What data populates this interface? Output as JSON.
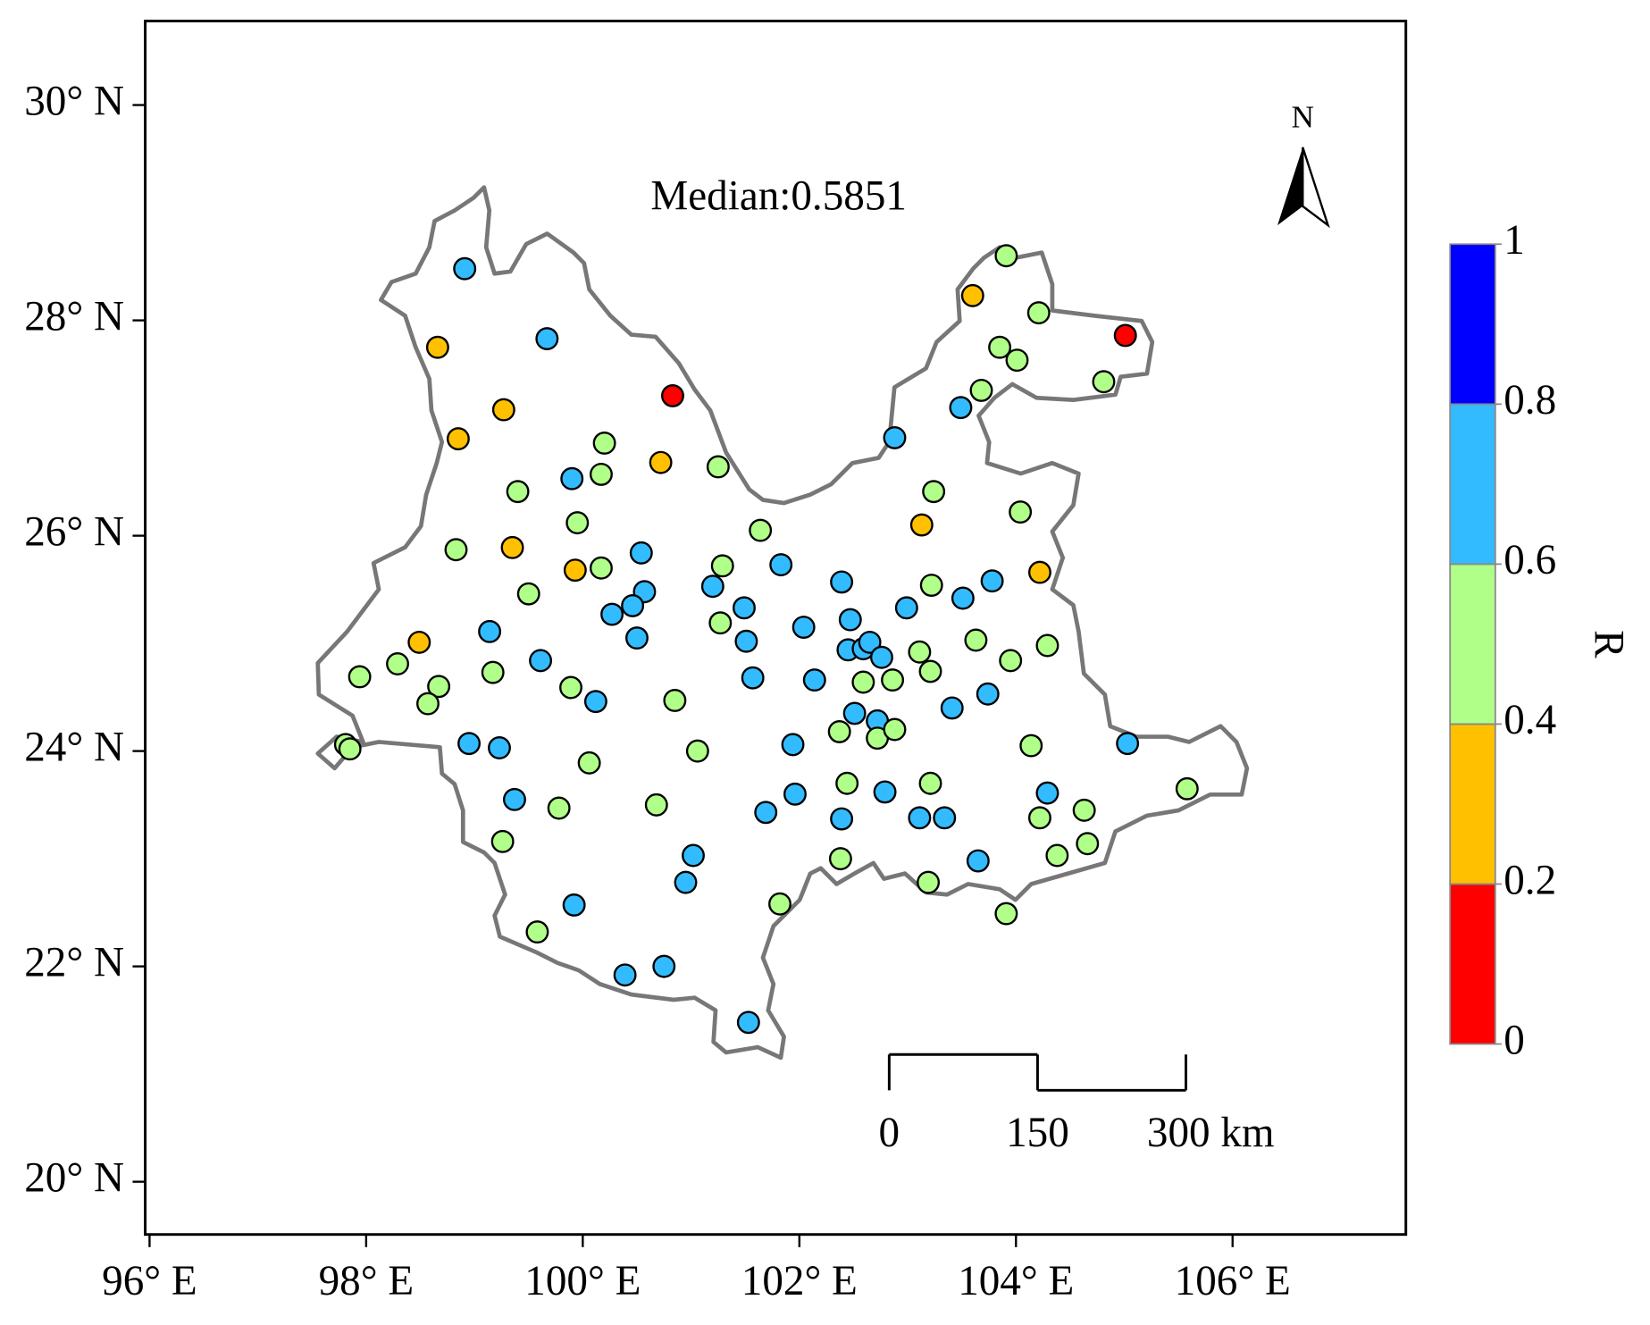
{
  "chart_data": {
    "type": "scatter",
    "annotation": "Median:0.5851",
    "north_label": "N",
    "xlim": [
      95.96,
      107.6
    ],
    "ylim": [
      19.51,
      30.78
    ],
    "xticks": [
      {
        "value": 96,
        "label": "96° E"
      },
      {
        "value": 98,
        "label": "98° E"
      },
      {
        "value": 100,
        "label": "100° E"
      },
      {
        "value": 102,
        "label": "102° E"
      },
      {
        "value": 104,
        "label": "104° E"
      },
      {
        "value": 106,
        "label": "106° E"
      }
    ],
    "yticks": [
      {
        "value": 20,
        "label": "20° N"
      },
      {
        "value": 22,
        "label": "22° N"
      },
      {
        "value": 24,
        "label": "24° N"
      },
      {
        "value": 26,
        "label": "26° N"
      },
      {
        "value": 28,
        "label": "28° N"
      },
      {
        "value": 30,
        "label": "30° N"
      }
    ],
    "x": [
      98.91,
      99.67,
      98.66,
      99.27,
      100.83,
      98.85,
      100.72,
      100.2,
      100.17,
      99.9,
      101.25,
      99.4,
      99.95,
      99.35,
      98.83,
      99.93,
      100.17,
      100.54,
      99.5,
      100.57,
      100.46,
      100.27,
      100.5,
      101.29,
      101.2,
      101.64,
      101.83,
      101.49,
      101.27,
      101.51,
      102.04,
      102.39,
      102.47,
      102.45,
      102.59,
      102.65,
      102.76,
      101.57,
      102.14,
      102.59,
      102.86,
      99.14,
      98.49,
      98.29,
      97.94,
      98.67,
      98.57,
      99.17,
      99.61,
      99.89,
      100.12,
      100.85,
      97.81,
      97.85,
      98.95,
      99.23,
      100.06,
      101.06,
      101.94,
      99.37,
      99.78,
      99.26,
      100.68,
      101.69,
      101.96,
      101.02,
      100.95,
      99.92,
      99.58,
      101.82,
      100.39,
      100.75,
      101.53,
      102.37,
      102.51,
      102.72,
      102.72,
      102.88,
      102.44,
      102.79,
      102.39,
      102.38,
      103.11,
      103.34,
      103.21,
      103.19,
      103.65,
      103.91,
      102.88,
      103.24,
      103.13,
      102.99,
      103.22,
      103.11,
      103.21,
      103.41,
      103.51,
      103.78,
      103.63,
      103.74,
      103.95,
      103.49,
      103.68,
      103.6,
      103.91,
      104.21,
      103.85,
      104.01,
      104.04,
      104.22,
      104.29,
      104.14,
      104.29,
      104.22,
      104.63,
      104.38,
      104.66,
      104.81,
      105.01,
      105.03,
      105.58
    ],
    "y": [
      28.48,
      27.83,
      27.75,
      27.17,
      27.3,
      26.9,
      26.68,
      26.86,
      26.57,
      26.53,
      26.64,
      26.41,
      26.12,
      25.89,
      25.87,
      25.68,
      25.7,
      25.84,
      25.46,
      25.48,
      25.35,
      25.27,
      25.05,
      25.72,
      25.53,
      26.05,
      25.73,
      25.33,
      25.19,
      25.02,
      25.15,
      25.57,
      25.22,
      24.94,
      24.95,
      25.01,
      24.87,
      24.68,
      24.66,
      24.64,
      24.66,
      25.11,
      25.01,
      24.81,
      24.69,
      24.6,
      24.44,
      24.73,
      24.84,
      24.59,
      24.46,
      24.47,
      24.06,
      24.02,
      24.07,
      24.03,
      23.89,
      24.0,
      24.06,
      23.55,
      23.47,
      23.16,
      23.5,
      23.43,
      23.6,
      23.03,
      22.78,
      22.57,
      22.32,
      22.58,
      21.92,
      22.0,
      21.48,
      24.18,
      24.35,
      24.28,
      24.12,
      24.2,
      23.7,
      23.62,
      23.37,
      23.0,
      23.38,
      23.38,
      23.7,
      22.78,
      22.98,
      22.49,
      26.91,
      26.41,
      26.1,
      25.33,
      25.54,
      24.92,
      24.74,
      24.4,
      25.42,
      25.58,
      25.03,
      24.53,
      24.84,
      27.19,
      27.35,
      28.23,
      28.6,
      28.07,
      27.75,
      27.63,
      26.22,
      25.66,
      24.98,
      24.05,
      23.61,
      23.38,
      23.45,
      23.03,
      23.14,
      27.43,
      27.86,
      24.07,
      23.65
    ],
    "values": [
      0.7,
      0.7,
      0.3,
      0.3,
      0.1,
      0.3,
      0.3,
      0.5,
      0.5,
      0.7,
      0.5,
      0.5,
      0.5,
      0.3,
      0.5,
      0.3,
      0.5,
      0.7,
      0.5,
      0.7,
      0.7,
      0.7,
      0.7,
      0.5,
      0.7,
      0.5,
      0.7,
      0.7,
      0.5,
      0.7,
      0.7,
      0.7,
      0.7,
      0.7,
      0.7,
      0.7,
      0.7,
      0.7,
      0.7,
      0.5,
      0.5,
      0.7,
      0.3,
      0.5,
      0.5,
      0.5,
      0.5,
      0.5,
      0.7,
      0.5,
      0.7,
      0.5,
      0.5,
      0.5,
      0.7,
      0.7,
      0.5,
      0.5,
      0.7,
      0.7,
      0.5,
      0.5,
      0.5,
      0.7,
      0.7,
      0.7,
      0.7,
      0.7,
      0.5,
      0.5,
      0.7,
      0.7,
      0.7,
      0.5,
      0.7,
      0.7,
      0.5,
      0.5,
      0.5,
      0.7,
      0.7,
      0.5,
      0.7,
      0.7,
      0.5,
      0.5,
      0.7,
      0.5,
      0.7,
      0.5,
      0.3,
      0.7,
      0.5,
      0.5,
      0.5,
      0.7,
      0.7,
      0.7,
      0.5,
      0.7,
      0.5,
      0.7,
      0.5,
      0.3,
      0.5,
      0.5,
      0.5,
      0.5,
      0.5,
      0.3,
      0.5,
      0.5,
      0.7,
      0.5,
      0.5,
      0.5,
      0.5,
      0.5,
      0.1,
      0.7,
      0.5
    ],
    "colorbar": {
      "title": "R",
      "ticks": [
        0,
        0.2,
        0.4,
        0.6,
        0.8,
        1
      ],
      "colors": [
        "#ff0000",
        "#ffc000",
        "#b0ff88",
        "#33bbff",
        "#0000ff"
      ]
    },
    "scale_bar": {
      "ticks": [
        0,
        150,
        {
          "value": 300,
          "label": "300 km"
        }
      ]
    }
  }
}
